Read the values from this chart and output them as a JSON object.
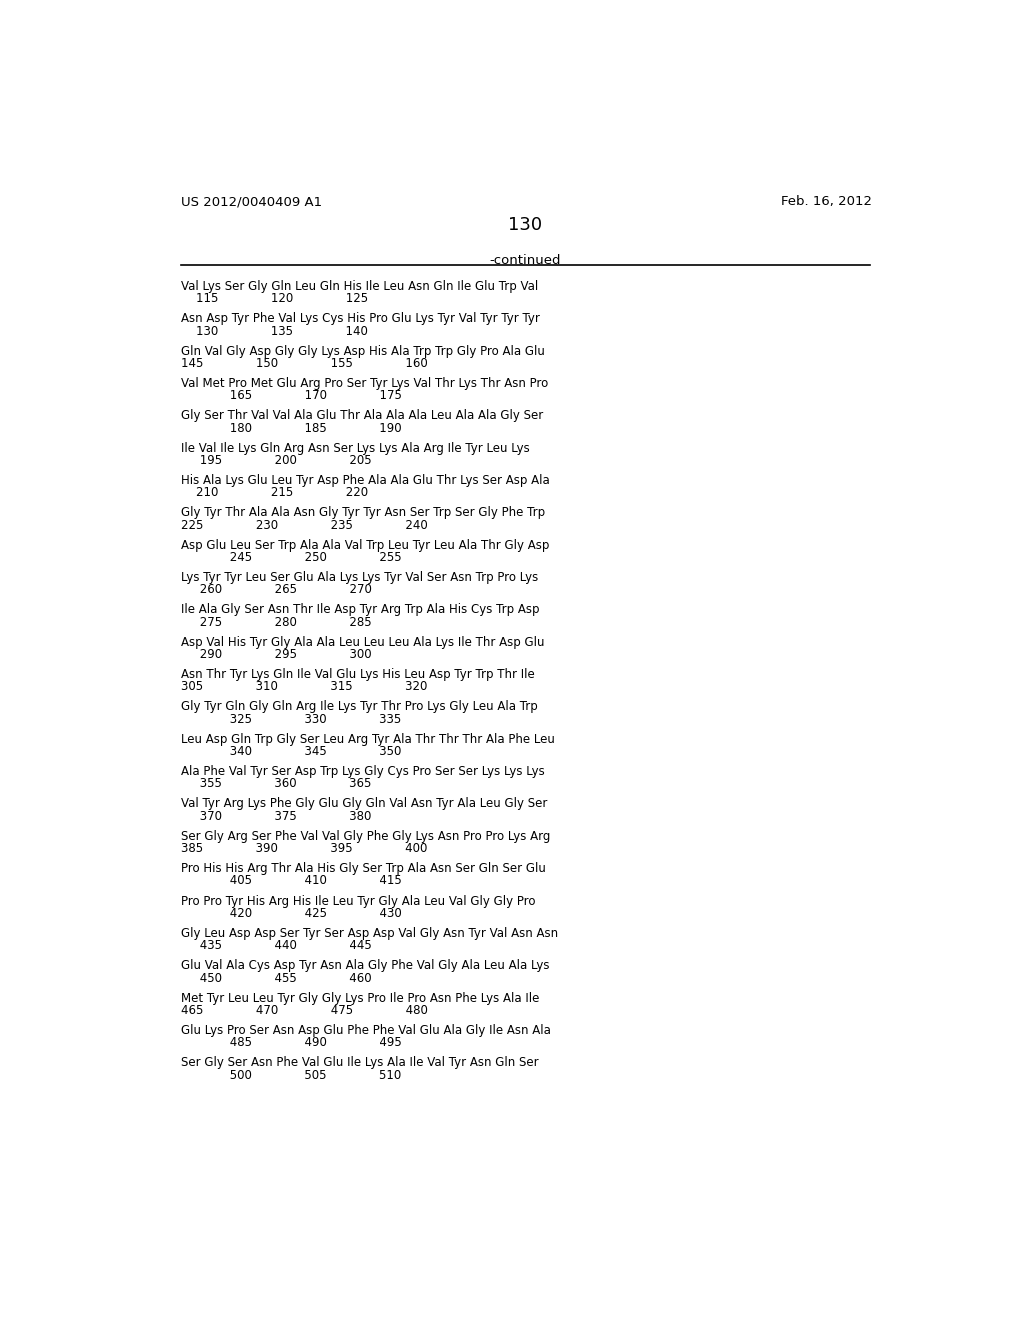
{
  "header_left": "US 2012/0040409 A1",
  "header_right": "Feb. 16, 2012",
  "page_number": "130",
  "continued_label": "-continued",
  "background_color": "#ffffff",
  "text_color": "#000000",
  "blocks": [
    [
      "Val Lys Ser Gly Gln Leu Gln His Ile Leu Asn Gln Ile Glu Trp Val",
      "    115              120              125"
    ],
    [
      "Asn Asp Tyr Phe Val Lys Cys His Pro Glu Lys Tyr Val Tyr Tyr Tyr",
      "    130              135              140"
    ],
    [
      "Gln Val Gly Asp Gly Gly Lys Asp His Ala Trp Trp Gly Pro Ala Glu",
      "145              150              155              160"
    ],
    [
      "Val Met Pro Met Glu Arg Pro Ser Tyr Lys Val Thr Lys Thr Asn Pro",
      "             165              170              175"
    ],
    [
      "Gly Ser Thr Val Val Ala Glu Thr Ala Ala Ala Leu Ala Ala Gly Ser",
      "             180              185              190"
    ],
    [
      "Ile Val Ile Lys Gln Arg Asn Ser Lys Lys Ala Arg Ile Tyr Leu Lys",
      "     195              200              205"
    ],
    [
      "His Ala Lys Glu Leu Tyr Asp Phe Ala Ala Glu Thr Lys Ser Asp Ala",
      "    210              215              220"
    ],
    [
      "Gly Tyr Thr Ala Ala Asn Gly Tyr Tyr Asn Ser Trp Ser Gly Phe Trp",
      "225              230              235              240"
    ],
    [
      "Asp Glu Leu Ser Trp Ala Ala Val Trp Leu Tyr Leu Ala Thr Gly Asp",
      "             245              250              255"
    ],
    [
      "Lys Tyr Tyr Leu Ser Glu Ala Lys Lys Tyr Val Ser Asn Trp Pro Lys",
      "     260              265              270"
    ],
    [
      "Ile Ala Gly Ser Asn Thr Ile Asp Tyr Arg Trp Ala His Cys Trp Asp",
      "     275              280              285"
    ],
    [
      "Asp Val His Tyr Gly Ala Ala Leu Leu Leu Ala Lys Ile Thr Asp Glu",
      "     290              295              300"
    ],
    [
      "Asn Thr Tyr Lys Gln Ile Val Glu Lys His Leu Asp Tyr Trp Thr Ile",
      "305              310              315              320"
    ],
    [
      "Gly Tyr Gln Gly Gln Arg Ile Lys Tyr Thr Pro Lys Gly Leu Ala Trp",
      "             325              330              335"
    ],
    [
      "Leu Asp Gln Trp Gly Ser Leu Arg Tyr Ala Thr Thr Thr Ala Phe Leu",
      "             340              345              350"
    ],
    [
      "Ala Phe Val Tyr Ser Asp Trp Lys Gly Cys Pro Ser Ser Lys Lys Lys",
      "     355              360              365"
    ],
    [
      "Val Tyr Arg Lys Phe Gly Glu Gly Gln Val Asn Tyr Ala Leu Gly Ser",
      "     370              375              380"
    ],
    [
      "Ser Gly Arg Ser Phe Val Val Gly Phe Gly Lys Asn Pro Pro Lys Arg",
      "385              390              395              400"
    ],
    [
      "Pro His His Arg Thr Ala His Gly Ser Trp Ala Asn Ser Gln Ser Glu",
      "             405              410              415"
    ],
    [
      "Pro Pro Tyr His Arg His Ile Leu Tyr Gly Ala Leu Val Gly Gly Pro",
      "             420              425              430"
    ],
    [
      "Gly Leu Asp Asp Ser Tyr Ser Asp Asp Val Gly Asn Tyr Val Asn Asn",
      "     435              440              445"
    ],
    [
      "Glu Val Ala Cys Asp Tyr Asn Ala Gly Phe Val Gly Ala Leu Ala Lys",
      "     450              455              460"
    ],
    [
      "Met Tyr Leu Leu Tyr Gly Gly Lys Pro Ile Pro Asn Phe Lys Ala Ile",
      "465              470              475              480"
    ],
    [
      "Glu Lys Pro Ser Asn Asp Glu Phe Phe Val Glu Ala Gly Ile Asn Ala",
      "             485              490              495"
    ],
    [
      "Ser Gly Ser Asn Phe Val Glu Ile Lys Ala Ile Val Tyr Asn Gln Ser",
      "             500              505              510"
    ]
  ]
}
